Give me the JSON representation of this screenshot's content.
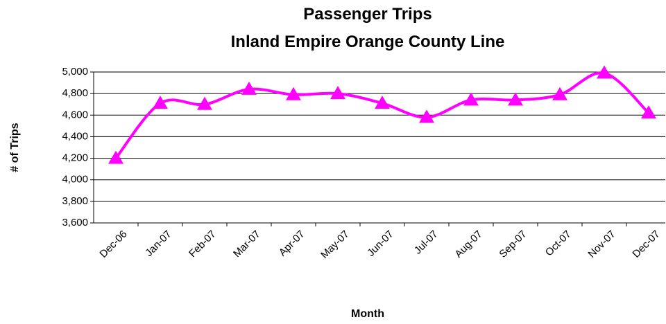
{
  "chart_data": {
    "type": "line",
    "title": [
      "Passenger Trips",
      "Inland Empire Orange County Line"
    ],
    "x_label": "Month",
    "y_label": "# of Trips",
    "categories": [
      "Dec-06",
      "Jan-07",
      "Feb-07",
      "Mar-07",
      "Apr-07",
      "May-07",
      "Jun-07",
      "Jul-07",
      "Aug-07",
      "Sep-07",
      "Oct-07",
      "Nov-07",
      "Dec-07"
    ],
    "series": [
      {
        "name": "Passenger Trips",
        "color": "#ff00ff",
        "values": [
          4200,
          4710,
          4700,
          4840,
          4790,
          4800,
          4710,
          4580,
          4740,
          4740,
          4790,
          4990,
          4620
        ]
      }
    ],
    "ylim": [
      3600,
      5000
    ],
    "yticks": [
      {
        "value": 3600,
        "label": "3,600"
      },
      {
        "value": 3800,
        "label": "3,800"
      },
      {
        "value": 4000,
        "label": "4,000"
      },
      {
        "value": 4200,
        "label": "4,200"
      },
      {
        "value": 4400,
        "label": "4,400"
      },
      {
        "value": 4600,
        "label": "4,600"
      },
      {
        "value": 4800,
        "label": "4,800"
      },
      {
        "value": 5000,
        "label": "5,000"
      }
    ],
    "grid": true,
    "smooth": true,
    "marker": "triangle"
  }
}
